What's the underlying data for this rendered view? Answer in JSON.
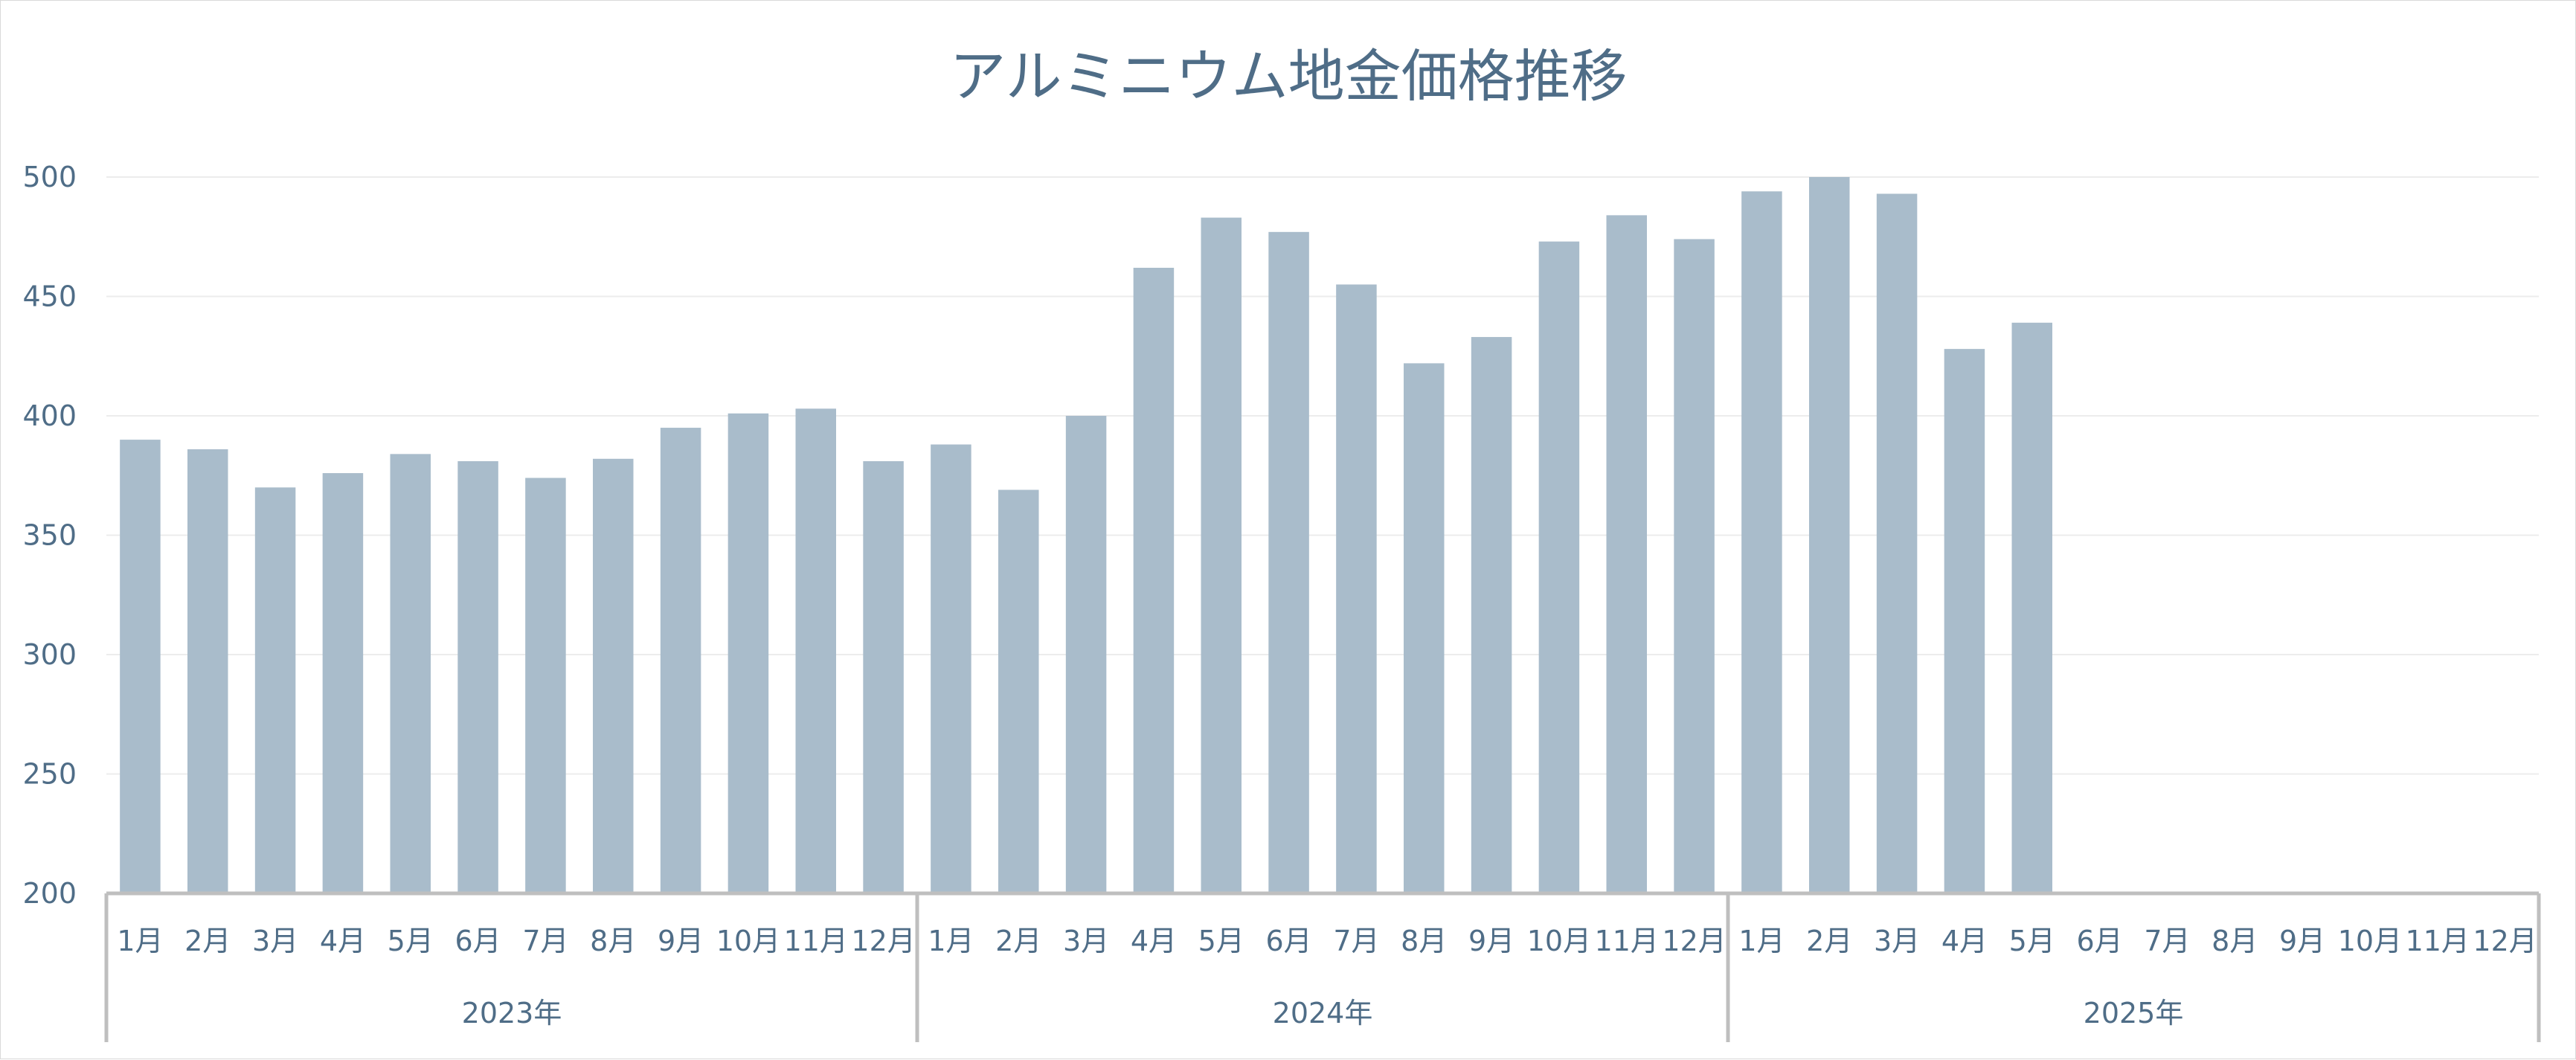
{
  "chart_data": {
    "type": "bar",
    "title": "アルミニウム地金価格推移",
    "xlabel": "",
    "ylabel": "",
    "ylim": [
      200,
      500
    ],
    "yticks": [
      200,
      250,
      300,
      350,
      400,
      450,
      500
    ],
    "grid": true,
    "legend": "none",
    "colors": {
      "bar": "#a9bccb",
      "text": "#4f6d87",
      "axis": "#bfbfbf",
      "grid": "#ececec"
    },
    "groups": [
      {
        "label": "2023年",
        "categories": [
          "1月",
          "2月",
          "3月",
          "4月",
          "5月",
          "6月",
          "7月",
          "8月",
          "9月",
          "10月",
          "11月",
          "12月"
        ],
        "values": [
          390,
          386,
          370,
          376,
          384,
          381,
          374,
          382,
          395,
          401,
          403,
          381
        ]
      },
      {
        "label": "2024年",
        "categories": [
          "1月",
          "2月",
          "3月",
          "4月",
          "5月",
          "6月",
          "7月",
          "8月",
          "9月",
          "10月",
          "11月",
          "12月"
        ],
        "values": [
          388,
          369,
          400,
          462,
          483,
          477,
          455,
          422,
          433,
          473,
          484,
          474
        ]
      },
      {
        "label": "2025年",
        "categories": [
          "1月",
          "2月",
          "3月",
          "4月",
          "5月",
          "6月",
          "7月",
          "8月",
          "9月",
          "10月",
          "11月",
          "12月"
        ],
        "values": [
          494,
          500,
          493,
          428,
          439,
          null,
          null,
          null,
          null,
          null,
          null,
          null
        ]
      }
    ]
  }
}
